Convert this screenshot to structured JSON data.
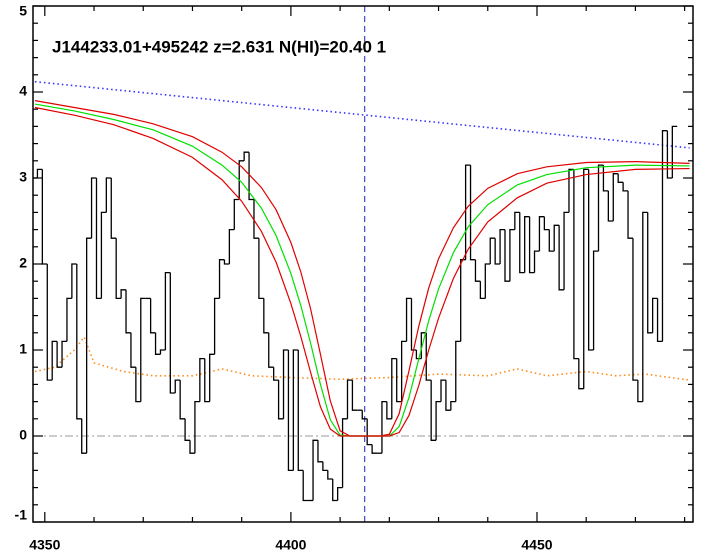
{
  "chart_data": {
    "type": "line",
    "annotation": "J144233.01+495242 z=2.631 N(HI)=20.40 1",
    "xlim": [
      4347.6,
      4481.7
    ],
    "ylim": [
      -1,
      5
    ],
    "xticks": [
      4350,
      4400,
      4450
    ],
    "yticks": [
      -1,
      0,
      1,
      2,
      3,
      4,
      5
    ],
    "xminorticks": [
      4360,
      4370,
      4380,
      4390,
      4410,
      4420,
      4430,
      4440,
      4460,
      4470,
      4480
    ],
    "yminorticks": [
      -0.8,
      -0.6,
      -0.4,
      -0.2,
      0.2,
      0.4,
      0.6,
      0.8,
      1.2,
      1.4,
      1.6,
      1.8,
      2.2,
      2.4,
      2.6,
      2.8,
      3.2,
      3.4,
      3.6,
      3.8,
      4.2,
      4.4,
      4.6,
      4.8
    ],
    "hline": 0,
    "hline_color": "#9a9a9a",
    "vline": 4415,
    "vline_color": "#2020c0",
    "series": [
      {
        "color": "#ff8c1a",
        "linestyle": "dotted",
        "x": [
          4348,
          4352,
          4356,
          4358,
          4360,
          4366,
          4372,
          4380,
          4386,
          4392,
          4400,
          4410,
          4420,
          4430,
          4440,
          4446,
          4452,
          4460,
          4466,
          4472,
          4481
        ],
        "values": [
          0.75,
          0.8,
          1.0,
          1.15,
          0.85,
          0.75,
          0.7,
          0.7,
          0.78,
          0.7,
          0.68,
          0.66,
          0.68,
          0.72,
          0.7,
          0.78,
          0.7,
          0.75,
          0.7,
          0.72,
          0.65
        ]
      },
      {
        "color": "#3333ff",
        "linestyle": "dotted",
        "x": [
          4348,
          4481
        ],
        "values": [
          4.12,
          3.35
        ]
      },
      {
        "color": "#000000",
        "linestyle": "solid",
        "drawstyle": "steps-mid",
        "x": [
          4348,
          4349,
          4350,
          4351,
          4352,
          4353,
          4354,
          4355,
          4356,
          4357,
          4358,
          4359,
          4360,
          4361,
          4362,
          4363,
          4364,
          4365,
          4366,
          4367,
          4368,
          4369,
          4370,
          4371,
          4372,
          4373,
          4374,
          4375,
          4376,
          4377,
          4378,
          4379,
          4380,
          4381,
          4382,
          4383,
          4384,
          4385,
          4386,
          4387,
          4388,
          4389,
          4390,
          4391,
          4392,
          4393,
          4394,
          4395,
          4396,
          4397,
          4398,
          4399,
          4400,
          4401,
          4402,
          4403,
          4404,
          4405,
          4406,
          4407,
          4408,
          4409,
          4410,
          4411,
          4412,
          4413,
          4414,
          4415,
          4416,
          4417,
          4418,
          4419,
          4420,
          4421,
          4422,
          4423,
          4424,
          4425,
          4426,
          4427,
          4428,
          4429,
          4430,
          4431,
          4432,
          4433,
          4434,
          4435,
          4436,
          4437,
          4438,
          4439,
          4440,
          4441,
          4442,
          4443,
          4444,
          4445,
          4446,
          4447,
          4448,
          4449,
          4450,
          4451,
          4452,
          4453,
          4454,
          4455,
          4456,
          4457,
          4458,
          4459,
          4460,
          4461,
          4462,
          4463,
          4464,
          4465,
          4466,
          4467,
          4468,
          4469,
          4470,
          4471,
          4472,
          4473,
          4474,
          4475,
          4476,
          4477,
          4478
        ],
        "values": [
          3.0,
          3.1,
          2.0,
          0.65,
          1.1,
          0.8,
          1.1,
          1.6,
          2.0,
          0.2,
          -0.2,
          2.3,
          3.0,
          1.6,
          2.6,
          3.0,
          2.3,
          1.6,
          1.7,
          1.2,
          0.8,
          0.4,
          1.6,
          1.6,
          1.2,
          0.95,
          1.0,
          1.9,
          0.5,
          0.65,
          0.2,
          -0.05,
          -0.2,
          0.4,
          0.9,
          0.4,
          0.95,
          1.6,
          2.05,
          2.0,
          2.4,
          2.75,
          3.2,
          3.3,
          2.75,
          2.3,
          1.6,
          1.2,
          0.8,
          0.65,
          0.2,
          1.0,
          -0.4,
          1.0,
          -0.4,
          -0.75,
          -0.75,
          -0.05,
          -0.3,
          -0.4,
          -0.5,
          -0.75,
          -0.6,
          0.2,
          0.65,
          0.3,
          0.3,
          0.2,
          -0.1,
          -0.2,
          -0.2,
          0.4,
          0.2,
          0.9,
          0.4,
          1.1,
          1.6,
          1.0,
          0.9,
          1.2,
          0.65,
          -0.05,
          0.4,
          0.65,
          0.3,
          0.4,
          1.1,
          2.05,
          3.15,
          2.05,
          1.8,
          1.6,
          2.0,
          2.3,
          2.0,
          2.4,
          1.8,
          2.4,
          2.6,
          1.9,
          2.55,
          1.9,
          2.15,
          2.55,
          2.4,
          2.15,
          2.45,
          1.7,
          2.6,
          3.1,
          0.9,
          0.55,
          3.1,
          1.0,
          2.15,
          3.15,
          2.85,
          2.5,
          3.05,
          2.95,
          2.85,
          2.3,
          0.65,
          0.4,
          2.6,
          1.2,
          1.6,
          1.1,
          3.55,
          3.0,
          3.6
        ]
      },
      {
        "color": "#e00000",
        "linestyle": "solid",
        "x": [
          4348,
          4356,
          4364,
          4372,
          4380,
          4386,
          4390,
          4394,
          4397,
          4400,
          4402,
          4404,
          4406,
          4408,
          4410,
          4412,
          4414,
          4416,
          4418,
          4420,
          4422,
          4424,
          4426,
          4428,
          4430,
          4433,
          4436,
          4440,
          4446,
          4452,
          4460,
          4470,
          4481
        ],
        "values": [
          3.9,
          3.82,
          3.74,
          3.63,
          3.48,
          3.3,
          3.13,
          2.89,
          2.63,
          2.25,
          1.91,
          1.48,
          0.95,
          0.41,
          0.06,
          0,
          0,
          0,
          0,
          0.02,
          0.26,
          0.76,
          1.28,
          1.72,
          2.06,
          2.42,
          2.67,
          2.88,
          3.05,
          3.13,
          3.18,
          3.19,
          3.17
        ]
      },
      {
        "color": "#00e000",
        "linestyle": "solid",
        "x": [
          4348,
          4356,
          4364,
          4372,
          4380,
          4386,
          4390,
          4394,
          4397,
          4400,
          4402,
          4404,
          4406,
          4408,
          4410,
          4412,
          4414,
          4416,
          4418,
          4420,
          4422,
          4424,
          4426,
          4428,
          4430,
          4433,
          4436,
          4440,
          4446,
          4452,
          4460,
          4470,
          4481
        ],
        "values": [
          3.86,
          3.78,
          3.68,
          3.56,
          3.37,
          3.15,
          2.95,
          2.65,
          2.33,
          1.89,
          1.52,
          1.08,
          0.6,
          0.19,
          0.01,
          0,
          0,
          0,
          0,
          0,
          0.11,
          0.45,
          0.9,
          1.34,
          1.71,
          2.13,
          2.43,
          2.69,
          2.92,
          3.04,
          3.12,
          3.15,
          3.14
        ]
      },
      {
        "color": "#e00000",
        "linestyle": "solid",
        "x": [
          4348,
          4356,
          4364,
          4372,
          4380,
          4386,
          4390,
          4394,
          4397,
          4400,
          4402,
          4404,
          4406,
          4408,
          4410,
          4412,
          4414,
          4416,
          4418,
          4420,
          4422,
          4424,
          4426,
          4428,
          4430,
          4433,
          4436,
          4440,
          4446,
          4452,
          4460,
          4470,
          4481
        ],
        "values": [
          3.82,
          3.73,
          3.62,
          3.46,
          3.24,
          2.98,
          2.73,
          2.38,
          2.02,
          1.54,
          1.16,
          0.74,
          0.34,
          0.08,
          0,
          0,
          0,
          0,
          0,
          0,
          0.04,
          0.24,
          0.59,
          1.0,
          1.37,
          1.83,
          2.17,
          2.49,
          2.77,
          2.94,
          3.04,
          3.1,
          3.11
        ]
      }
    ]
  }
}
